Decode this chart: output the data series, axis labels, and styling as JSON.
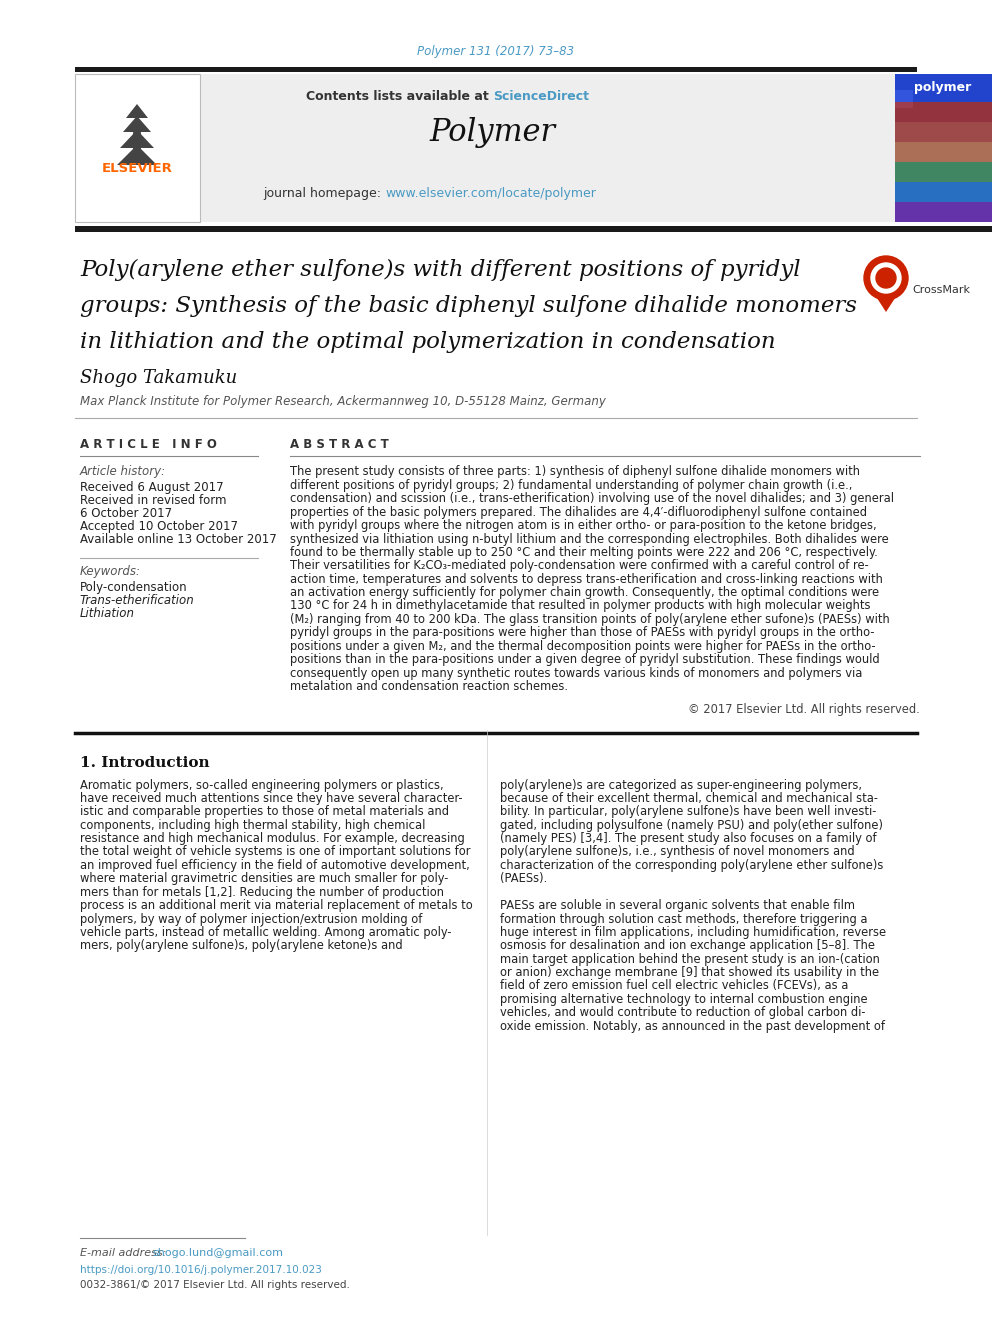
{
  "page_bg": "#ffffff",
  "journal_ref": "Polymer 131 (2017) 73–83",
  "journal_ref_color": "#4a9ac4",
  "contents_text": "Contents lists available at ",
  "sciencedirect_text": "ScienceDirect",
  "sciencedirect_color": "#4a9ac4",
  "journal_name": "Polymer",
  "journal_homepage_label": "journal homepage: ",
  "journal_url": "www.elsevier.com/locate/polymer",
  "journal_url_color": "#4a9ac4",
  "elsevier_color": "#ff6600",
  "author": "Shogo Takamuku",
  "affiliation": "Max Planck Institute for Polymer Research, Ackermannweg 10, D-55128 Mainz, Germany",
  "article_info_header": "A R T I C L E   I N F O",
  "abstract_header": "A B S T R A C T",
  "article_history_label": "Article history:",
  "received_1": "Received 6 August 2017",
  "received_revised": "Received in revised form",
  "received_revised_date": "6 October 2017",
  "accepted": "Accepted 10 October 2017",
  "available_online": "Available online 13 October 2017",
  "keywords_label": "Keywords:",
  "keywords": [
    "Poly-condensation",
    "Trans-etherification",
    "Lithiation"
  ],
  "copyright": "© 2017 Elsevier Ltd. All rights reserved.",
  "intro_header": "1. Introduction",
  "email_label": "E-mail address: ",
  "email": "shogo.lund@gmail.com",
  "email_color": "#4a9ac4",
  "doi": "https://doi.org/10.1016/j.polymer.2017.10.023",
  "doi_color": "#4a9ac4",
  "issn": "0032-3861/© 2017 Elsevier Ltd. All rights reserved.",
  "thick_bar_color": "#1a1a1a",
  "title_lines": [
    "Poly(arylene ether sulfone)s with different positions of pyridyl",
    "groups: Synthesis of the basic diphenyl sulfone dihalide monomers",
    "in lithiation and the optimal polymerization in condensation"
  ],
  "abstract_lines": [
    "The present study consists of three parts: 1) synthesis of diphenyl sulfone dihalide monomers with",
    "different positions of pyridyl groups; 2) fundamental understanding of polymer chain growth (i.e.,",
    "condensation) and scission (i.e., trans-etherification) involving use of the novel dihalides; and 3) general",
    "properties of the basic polymers prepared. The dihalides are 4,4′-difluorodiphenyl sulfone contained",
    "with pyridyl groups where the nitrogen atom is in either ortho- or para-position to the ketone bridges,",
    "synthesized via lithiation using n-butyl lithium and the corresponding electrophiles. Both dihalides were",
    "found to be thermally stable up to 250 °C and their melting points were 222 and 206 °C, respectively.",
    "Their versatilities for K₂CO₃-mediated poly-condensation were confirmed with a careful control of re-",
    "action time, temperatures and solvents to depress trans-etherification and cross-linking reactions with",
    "an activation energy sufficiently for polymer chain growth. Consequently, the optimal conditions were",
    "130 °C for 24 h in dimethylacetamide that resulted in polymer products with high molecular weights",
    "(M₂) ranging from 40 to 200 kDa. The glass transition points of poly(arylene ether sufone)s (PAESs) with",
    "pyridyl groups in the para-positions were higher than those of PAESs with pyridyl groups in the ortho-",
    "positions under a given M₂, and the thermal decomposition points were higher for PAESs in the ortho-",
    "positions than in the para-positions under a given degree of pyridyl substitution. These findings would",
    "consequently open up many synthetic routes towards various kinds of monomers and polymers via",
    "metalation and condensation reaction schemes."
  ],
  "intro1_lines": [
    "Aromatic polymers, so-called engineering polymers or plastics,",
    "have received much attentions since they have several character-",
    "istic and comparable properties to those of metal materials and",
    "components, including high thermal stability, high chemical",
    "resistance and high mechanical modulus. For example, decreasing",
    "the total weight of vehicle systems is one of important solutions for",
    "an improved fuel efficiency in the field of automotive development,",
    "where material gravimetric densities are much smaller for poly-",
    "mers than for metals [1,2]. Reducing the number of production",
    "process is an additional merit via material replacement of metals to",
    "polymers, by way of polymer injection/extrusion molding of",
    "vehicle parts, instead of metallic welding. Among aromatic poly-",
    "mers, poly(arylene sulfone)s, poly(arylene ketone)s and"
  ],
  "intro2_lines": [
    "poly(arylene)s are categorized as super-engineering polymers,",
    "because of their excellent thermal, chemical and mechanical sta-",
    "bility. In particular, poly(arylene sulfone)s have been well investi-",
    "gated, including polysulfone (namely PSU) and poly(ether sulfone)",
    "(namely PES) [3,4]. The present study also focuses on a family of",
    "poly(arylene sulfone)s, i.e., synthesis of novel monomers and",
    "characterization of the corresponding poly(arylene ether sulfone)s",
    "(PAESs).",
    "",
    "PAESs are soluble in several organic solvents that enable film",
    "formation through solution cast methods, therefore triggering a",
    "huge interest in film applications, including humidification, reverse",
    "osmosis for desalination and ion exchange application [5–8]. The",
    "main target application behind the present study is an ion-(cation",
    "or anion) exchange membrane [9] that showed its usability in the",
    "field of zero emission fuel cell electric vehicles (FCEVs), as a",
    "promising alternative technology to internal combustion engine",
    "vehicles, and would contribute to reduction of global carbon di-",
    "oxide emission. Notably, as announced in the past development of"
  ]
}
